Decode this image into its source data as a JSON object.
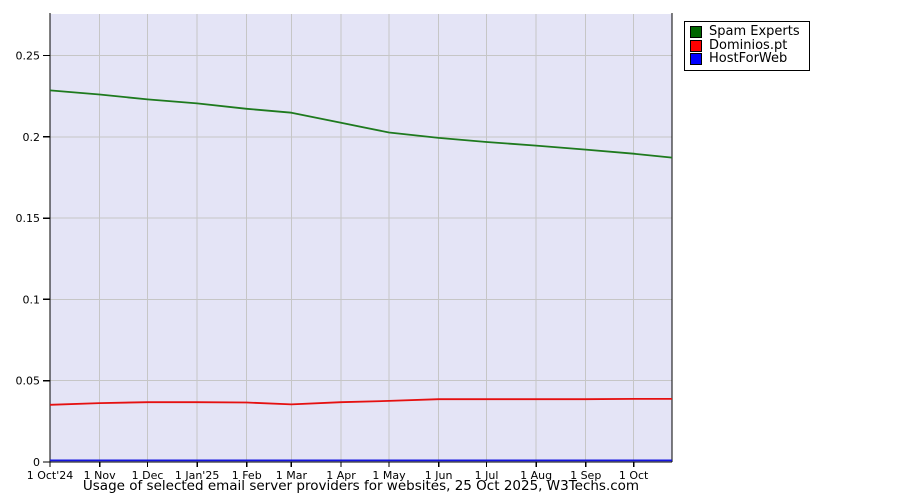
{
  "page": {
    "background": "#ffffff"
  },
  "chart_data": {
    "type": "line",
    "title": "",
    "caption": "Usage of selected email server providers for websites, 25 Oct 2025, W3Techs.com",
    "plot_background": "#e4e4f6",
    "grid_color": "#c6c6c6",
    "axis_color": "#000000",
    "grid": true,
    "legend_position": "top-right",
    "xlabel": "",
    "ylabel": "",
    "ylim": [
      0,
      0.2755
    ],
    "y_ticks": [
      {
        "value": 0,
        "label": "0"
      },
      {
        "value": 0.05,
        "label": "0.05"
      },
      {
        "value": 0.1,
        "label": "0.1"
      },
      {
        "value": 0.15,
        "label": "0.15"
      },
      {
        "value": 0.2,
        "label": "0.2"
      },
      {
        "value": 0.25,
        "label": "0.25"
      }
    ],
    "x_total_days": 389,
    "x_ticks": [
      {
        "day": 0,
        "label": "1 Oct'24"
      },
      {
        "day": 31,
        "label": "1 Nov"
      },
      {
        "day": 61,
        "label": "1 Dec"
      },
      {
        "day": 92,
        "label": "1 Jan'25"
      },
      {
        "day": 123,
        "label": "1 Feb"
      },
      {
        "day": 151,
        "label": "1 Mar"
      },
      {
        "day": 182,
        "label": "1 Apr"
      },
      {
        "day": 212,
        "label": "1 May"
      },
      {
        "day": 243,
        "label": "1 Jun"
      },
      {
        "day": 273,
        "label": "1 Jul"
      },
      {
        "day": 304,
        "label": "1 Aug"
      },
      {
        "day": 335,
        "label": "1 Sep"
      },
      {
        "day": 365,
        "label": "1 Oct"
      }
    ],
    "sample_days": [
      0,
      31,
      61,
      92,
      123,
      151,
      182,
      212,
      243,
      273,
      304,
      335,
      365,
      389
    ],
    "series": [
      {
        "name": "Spam Experts",
        "swatch_color": "#006600",
        "line_color": "#1e7a1e",
        "values": [
          0.2285,
          0.226,
          0.223,
          0.2205,
          0.2172,
          0.2148,
          0.2086,
          0.2026,
          0.1993,
          0.1968,
          0.1946,
          0.1921,
          0.1896,
          0.1872
        ]
      },
      {
        "name": "Dominios.pt",
        "swatch_color": "#ff0000",
        "line_color": "#e51010",
        "values": [
          0.0352,
          0.0362,
          0.0368,
          0.0368,
          0.0366,
          0.0354,
          0.0368,
          0.0376,
          0.0386,
          0.0386,
          0.0386,
          0.0386,
          0.0388,
          0.0388
        ]
      },
      {
        "name": "HostForWeb",
        "swatch_color": "#0000ff",
        "line_color": "#1414e0",
        "values": [
          0,
          0,
          0,
          0,
          0,
          0,
          0,
          0,
          0,
          0,
          0,
          0,
          0,
          0
        ]
      }
    ]
  }
}
